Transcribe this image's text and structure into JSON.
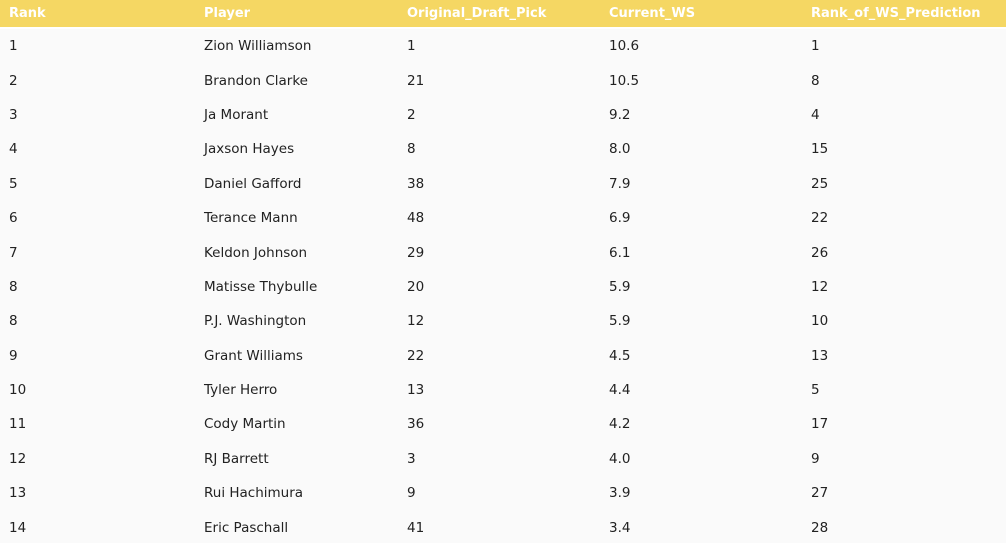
{
  "table": {
    "columns": [
      "Rank",
      "Player",
      "Original_Draft_Pick",
      "Current_WS",
      "Rank_of_WS_Prediction"
    ],
    "rows": [
      [
        "1",
        "Zion Williamson",
        "1",
        "10.6",
        "1"
      ],
      [
        "2",
        "Brandon Clarke",
        "21",
        "10.5",
        "8"
      ],
      [
        "3",
        "Ja Morant",
        "2",
        "9.2",
        "4"
      ],
      [
        "4",
        "Jaxson Hayes",
        "8",
        "8.0",
        "15"
      ],
      [
        "5",
        "Daniel Gafford",
        "38",
        "7.9",
        "25"
      ],
      [
        "6",
        "Terance Mann",
        "48",
        "6.9",
        "22"
      ],
      [
        "7",
        "Keldon Johnson",
        "29",
        "6.1",
        "26"
      ],
      [
        "8",
        "Matisse Thybulle",
        "20",
        "5.9",
        "12"
      ],
      [
        "8",
        "P.J. Washington",
        "12",
        "5.9",
        "10"
      ],
      [
        "9",
        "Grant Williams",
        "22",
        "4.5",
        "13"
      ],
      [
        "10",
        "Tyler Herro",
        "13",
        "4.4",
        "5"
      ],
      [
        "11",
        "Cody Martin",
        "36",
        "4.2",
        "17"
      ],
      [
        "12",
        "RJ Barrett",
        "3",
        "4.0",
        "9"
      ],
      [
        "13",
        "Rui Hachimura",
        "9",
        "3.9",
        "27"
      ],
      [
        "14",
        "Eric Paschall",
        "41",
        "3.4",
        "28"
      ]
    ]
  },
  "colors": {
    "header_bg": "#f5d763",
    "header_text": "#ffffff",
    "row_bg": "#fafafa",
    "cell_text": "#222222"
  }
}
